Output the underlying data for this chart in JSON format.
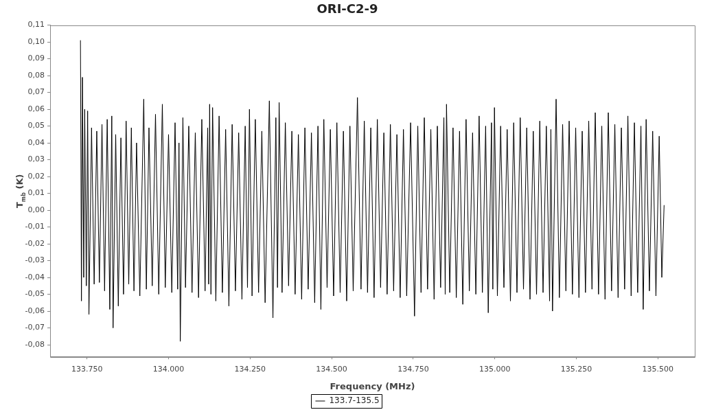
{
  "chart_data": {
    "type": "line",
    "title": "ORI-C2-9",
    "xlabel": "Frequency (MHz)",
    "ylabel": "T$_{mb}$ (K)",
    "xlim": [
      133637,
      135613
    ],
    "xticks": [
      {
        "value": 133750,
        "label": "133.750"
      },
      {
        "value": 134000,
        "label": "134.000"
      },
      {
        "value": 134250,
        "label": "134.250"
      },
      {
        "value": 134500,
        "label": "134.500"
      },
      {
        "value": 134750,
        "label": "134.750"
      },
      {
        "value": 135000,
        "label": "135.000"
      },
      {
        "value": 135250,
        "label": "135.250"
      },
      {
        "value": 135500,
        "label": "135.500"
      }
    ],
    "ylim": [
      -0.087,
      0.11
    ],
    "yticks": [
      {
        "value": 0.11,
        "label": "0,11"
      },
      {
        "value": 0.1,
        "label": "0,10"
      },
      {
        "value": 0.09,
        "label": "0,09"
      },
      {
        "value": 0.08,
        "label": "0,08"
      },
      {
        "value": 0.07,
        "label": "0,07"
      },
      {
        "value": 0.06,
        "label": "0,06"
      },
      {
        "value": 0.05,
        "label": "0,05"
      },
      {
        "value": 0.04,
        "label": "0,04"
      },
      {
        "value": 0.03,
        "label": "0,03"
      },
      {
        "value": 0.02,
        "label": "0,02"
      },
      {
        "value": 0.01,
        "label": "0,01"
      },
      {
        "value": 0.0,
        "label": "0,00"
      },
      {
        "value": -0.01,
        "label": "-0,01"
      },
      {
        "value": -0.02,
        "label": "-0,02"
      },
      {
        "value": -0.03,
        "label": "-0,03"
      },
      {
        "value": -0.04,
        "label": "-0,04"
      },
      {
        "value": -0.05,
        "label": "-0,05"
      },
      {
        "value": -0.06,
        "label": "-0,06"
      },
      {
        "value": -0.07,
        "label": "-0,07"
      },
      {
        "value": -0.08,
        "label": "-0,08"
      }
    ],
    "grid": false,
    "legend": "bottom",
    "x": [
      133730,
      133733,
      133736,
      133740,
      133743,
      133748,
      133752,
      133756,
      133764,
      133772,
      133780,
      133788,
      133796,
      133804,
      133812,
      133820,
      133826,
      133830,
      133838,
      133846,
      133854,
      133862,
      133870,
      133878,
      133886,
      133894,
      133902,
      133912,
      133924,
      133932,
      133940,
      133950,
      133960,
      133970,
      133981,
      133990,
      134000,
      134010,
      134020,
      134028,
      134032,
      134036,
      134044,
      134052,
      134062,
      134072,
      134082,
      134092,
      134102,
      134112,
      134120,
      134123,
      134126,
      134130,
      134135,
      134145,
      134155,
      134165,
      134175,
      134185,
      134195,
      134205,
      134215,
      134225,
      134235,
      134242,
      134248,
      134256,
      134266,
      134276,
      134286,
      134296,
      134309,
      134320,
      134329,
      134334,
      134339,
      134348,
      134358,
      134368,
      134378,
      134388,
      134398,
      134408,
      134418,
      134428,
      134438,
      134448,
      134458,
      134467,
      134476,
      134486,
      134496,
      134506,
      134516,
      134526,
      134536,
      134546,
      134556,
      134566,
      134579,
      134590,
      134600,
      134610,
      134620,
      134630,
      134640,
      134650,
      134660,
      134670,
      134680,
      134690,
      134700,
      134710,
      134720,
      134730,
      134742,
      134754,
      134764,
      134774,
      134784,
      134794,
      134804,
      134814,
      134824,
      134834,
      134844,
      134848,
      134852,
      134862,
      134872,
      134882,
      134892,
      134902,
      134912,
      134922,
      134932,
      134942,
      134952,
      134962,
      134972,
      134980,
      134990,
      134994,
      134999,
      135008,
      135018,
      135028,
      135038,
      135048,
      135058,
      135068,
      135078,
      135088,
      135098,
      135108,
      135118,
      135128,
      135138,
      135148,
      135158,
      135168,
      135172,
      135177,
      135188,
      135198,
      135208,
      135218,
      135228,
      135238,
      135248,
      135258,
      135268,
      135278,
      135288,
      135298,
      135308,
      135318,
      135328,
      135338,
      135348,
      135358,
      135368,
      135378,
      135388,
      135398,
      135408,
      135418,
      135428,
      135438,
      135448,
      135455,
      135464,
      135474,
      135484,
      135494,
      135504,
      135512,
      135519
    ],
    "series": [
      {
        "name": "133.7-135.5",
        "color": "#000000",
        "values": [
          0.101,
          -0.054,
          0.079,
          -0.04,
          0.06,
          -0.045,
          0.059,
          -0.062,
          0.049,
          -0.044,
          0.047,
          -0.043,
          0.051,
          -0.048,
          0.054,
          -0.059,
          0.056,
          -0.07,
          0.045,
          -0.057,
          0.043,
          -0.05,
          0.053,
          -0.044,
          0.049,
          -0.048,
          0.04,
          -0.051,
          0.066,
          -0.047,
          0.049,
          -0.045,
          0.057,
          -0.05,
          0.063,
          -0.046,
          0.045,
          -0.049,
          0.052,
          -0.047,
          0.04,
          -0.078,
          0.055,
          -0.046,
          0.05,
          -0.049,
          0.046,
          -0.052,
          0.054,
          -0.048,
          0.049,
          -0.044,
          0.063,
          -0.05,
          0.061,
          -0.054,
          0.056,
          -0.049,
          0.048,
          -0.057,
          0.051,
          -0.048,
          0.046,
          -0.053,
          0.05,
          -0.046,
          0.06,
          -0.051,
          0.054,
          -0.049,
          0.047,
          -0.055,
          0.065,
          -0.064,
          0.055,
          -0.046,
          0.064,
          -0.049,
          0.052,
          -0.045,
          0.047,
          -0.05,
          0.045,
          -0.053,
          0.049,
          -0.047,
          0.046,
          -0.055,
          0.05,
          -0.059,
          0.054,
          -0.046,
          0.048,
          -0.051,
          0.052,
          -0.049,
          0.047,
          -0.054,
          0.05,
          -0.048,
          0.067,
          -0.047,
          0.053,
          -0.049,
          0.049,
          -0.052,
          0.054,
          -0.046,
          0.046,
          -0.05,
          0.051,
          -0.048,
          0.045,
          -0.052,
          0.048,
          -0.051,
          0.052,
          -0.063,
          0.05,
          -0.049,
          0.055,
          -0.047,
          0.048,
          -0.053,
          0.05,
          -0.046,
          0.055,
          -0.05,
          0.063,
          -0.049,
          0.049,
          -0.052,
          0.047,
          -0.056,
          0.054,
          -0.048,
          0.046,
          -0.05,
          0.056,
          -0.049,
          0.05,
          -0.061,
          0.052,
          -0.047,
          0.061,
          -0.051,
          0.05,
          -0.046,
          0.048,
          -0.054,
          0.052,
          -0.049,
          0.055,
          -0.047,
          0.049,
          -0.053,
          0.047,
          -0.05,
          0.053,
          -0.049,
          0.05,
          -0.054,
          0.048,
          -0.06,
          0.066,
          -0.052,
          0.051,
          -0.048,
          0.053,
          -0.05,
          0.049,
          -0.052,
          0.047,
          -0.049,
          0.053,
          -0.047,
          0.058,
          -0.05,
          0.05,
          -0.053,
          0.058,
          -0.048,
          0.051,
          -0.052,
          0.049,
          -0.047,
          0.056,
          -0.051,
          0.052,
          -0.049,
          0.05,
          -0.059,
          0.054,
          -0.048,
          0.047,
          -0.051,
          0.044,
          -0.04,
          0.003
        ]
      }
    ]
  }
}
